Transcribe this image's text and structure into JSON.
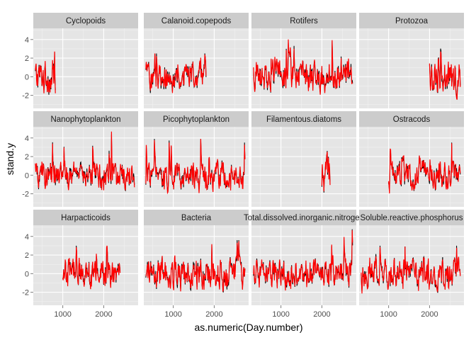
{
  "chart_data": {
    "type": "line",
    "xlabel": "as.numeric(Day.number)",
    "ylabel": "stand.y",
    "xlim": [
      280,
      2840
    ],
    "ylim": [
      -3.4,
      5.2
    ],
    "x_ticks": [
      1000,
      2000
    ],
    "y_ticks": [
      -2,
      0,
      2,
      4
    ],
    "grid": true,
    "colors": {
      "panel_bg": "#e5e5e5",
      "strip_bg": "#cccccc",
      "grid_major": "#ffffff",
      "grid_minor": "#f2f2f2",
      "series_observed": "#000000",
      "series_fitted": "#ff0000"
    },
    "panels": [
      {
        "name": "Cyclopoids",
        "x_range": [
          330,
          820
        ],
        "amp": 1.1,
        "spike": 2.7
      },
      {
        "name": "Calanoid.copepods",
        "x_range": [
          330,
          1800
        ],
        "amp": 1.0,
        "spike": 2.5
      },
      {
        "name": "Rotifers",
        "x_range": [
          330,
          2750
        ],
        "amp": 1.0,
        "spike": 4.2
      },
      {
        "name": "Protozoa",
        "x_range": [
          2000,
          2750
        ],
        "amp": 1.2,
        "spike": 3.8
      },
      {
        "name": "Nanophytoplankton",
        "x_range": [
          330,
          2750
        ],
        "amp": 0.9,
        "spike": 5.0
      },
      {
        "name": "Picophytoplankton",
        "x_range": [
          330,
          2750
        ],
        "amp": 0.9,
        "spike": 3.9
      },
      {
        "name": "Filamentous.diatoms",
        "x_range": [
          2000,
          2200
        ],
        "amp": 1.3,
        "spike": 3.3
      },
      {
        "name": "Ostracods",
        "x_range": [
          1000,
          2750
        ],
        "amp": 1.0,
        "spike": 3.5
      },
      {
        "name": "Harpacticoids",
        "x_range": [
          1000,
          2400
        ],
        "amp": 1.0,
        "spike": 3.0
      },
      {
        "name": "Bacteria",
        "x_range": [
          330,
          2750
        ],
        "amp": 1.0,
        "spike": 3.6
      },
      {
        "name": "Total.dissolved.inorganic.nitrogen",
        "x_range": [
          330,
          2750
        ],
        "amp": 0.9,
        "spike": 4.8
      },
      {
        "name": "Soluble.reactive.phosphorus",
        "x_range": [
          330,
          2750
        ],
        "amp": 1.0,
        "spike": 3.0
      }
    ]
  }
}
